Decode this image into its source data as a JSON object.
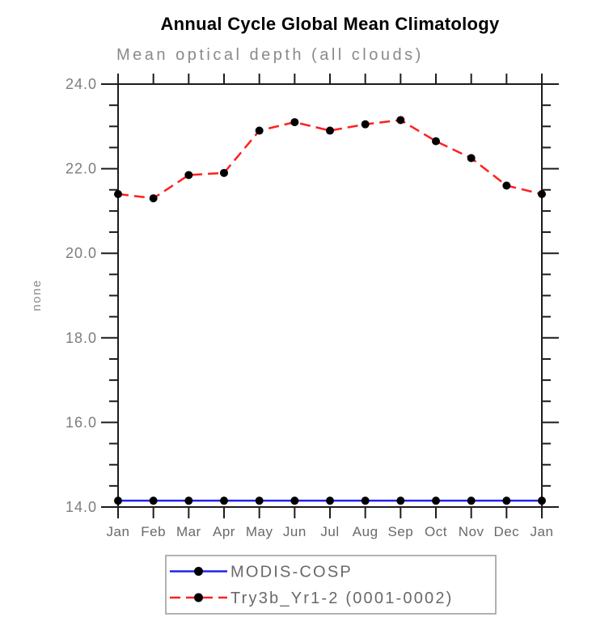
{
  "chart": {
    "title": "Annual Cycle Global Mean Climatology",
    "subtitle": "Mean optical depth (all clouds)",
    "y_axis_label": "none"
  },
  "chart_data": {
    "type": "line",
    "title": "Annual Cycle Global Mean Climatology",
    "subtitle": "Mean optical depth (all clouds)",
    "xlabel": "",
    "ylabel": "none",
    "categories": [
      "Jan",
      "Feb",
      "Mar",
      "Apr",
      "May",
      "Jun",
      "Jul",
      "Aug",
      "Sep",
      "Oct",
      "Nov",
      "Dec",
      "Jan"
    ],
    "ylim": [
      14.0,
      24.0
    ],
    "ytick_major_step": 2.0,
    "ytick_minor_step": 0.5,
    "ytick_values": [
      14.0,
      16.0,
      18.0,
      20.0,
      22.0,
      24.0
    ],
    "ytick_labels": [
      "14.0",
      "16.0",
      "18.0",
      "20.0",
      "22.0",
      "24.0"
    ],
    "grid": false,
    "legend_position": "bottom",
    "series": [
      {
        "name": "MODIS-COSP",
        "color": "#2222ee",
        "line_style": "solid",
        "marker": "filled-circle",
        "marker_color": "#000000",
        "values": [
          14.15,
          14.15,
          14.15,
          14.15,
          14.15,
          14.15,
          14.15,
          14.15,
          14.15,
          14.15,
          14.15,
          14.15,
          14.15
        ]
      },
      {
        "name": "Try3b_Yr1-2 (0001-0002)",
        "color": "#ff1f1f",
        "line_style": "dashed",
        "marker": "filled-circle",
        "marker_color": "#000000",
        "values": [
          21.4,
          21.3,
          21.85,
          21.9,
          22.9,
          23.1,
          22.9,
          23.05,
          23.15,
          22.65,
          22.25,
          21.6,
          21.4
        ]
      }
    ]
  },
  "colors": {
    "background": "#ffffff",
    "axis": "#1c1c1c",
    "tick_label": "#7d7d7d",
    "month_label": "#696969",
    "title": "#000000",
    "subtitle": "#8a8a8a",
    "ylabel": "#8a8a8a",
    "legend_border": "#999999",
    "legend_text": "#696969"
  }
}
